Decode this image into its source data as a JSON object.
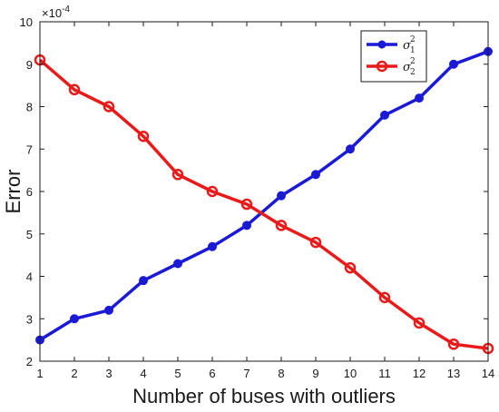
{
  "chart_data": {
    "type": "line",
    "title": "",
    "xlabel": "Number of buses with outliers",
    "ylabel": "Error",
    "y_exponent": "×10",
    "y_exponent_power": "-4",
    "x": [
      1,
      2,
      3,
      4,
      5,
      6,
      7,
      8,
      9,
      10,
      11,
      12,
      13,
      14
    ],
    "xlim": [
      1,
      14
    ],
    "ylim": [
      2,
      10
    ],
    "xticks": [
      1,
      2,
      3,
      4,
      5,
      6,
      7,
      8,
      9,
      10,
      11,
      12,
      13,
      14
    ],
    "yticks": [
      2,
      3,
      4,
      5,
      6,
      7,
      8,
      9,
      10
    ],
    "grid": false,
    "legend_position": "top-right",
    "series": [
      {
        "name": "σ",
        "name_sub": "1",
        "name_sup": "2",
        "color": "#1a1ad6",
        "marker": "filled-circle",
        "values": [
          2.5,
          3.0,
          3.2,
          3.9,
          4.3,
          4.7,
          5.2,
          5.9,
          6.4,
          7.0,
          7.8,
          8.2,
          9.0,
          9.3
        ]
      },
      {
        "name": "σ",
        "name_sub": "2",
        "name_sup": "2",
        "color": "#e81a1a",
        "marker": "open-circle",
        "values": [
          9.1,
          8.4,
          8.0,
          7.3,
          6.4,
          6.0,
          5.7,
          5.2,
          4.8,
          4.2,
          3.5,
          2.9,
          2.4,
          2.3
        ]
      }
    ]
  }
}
